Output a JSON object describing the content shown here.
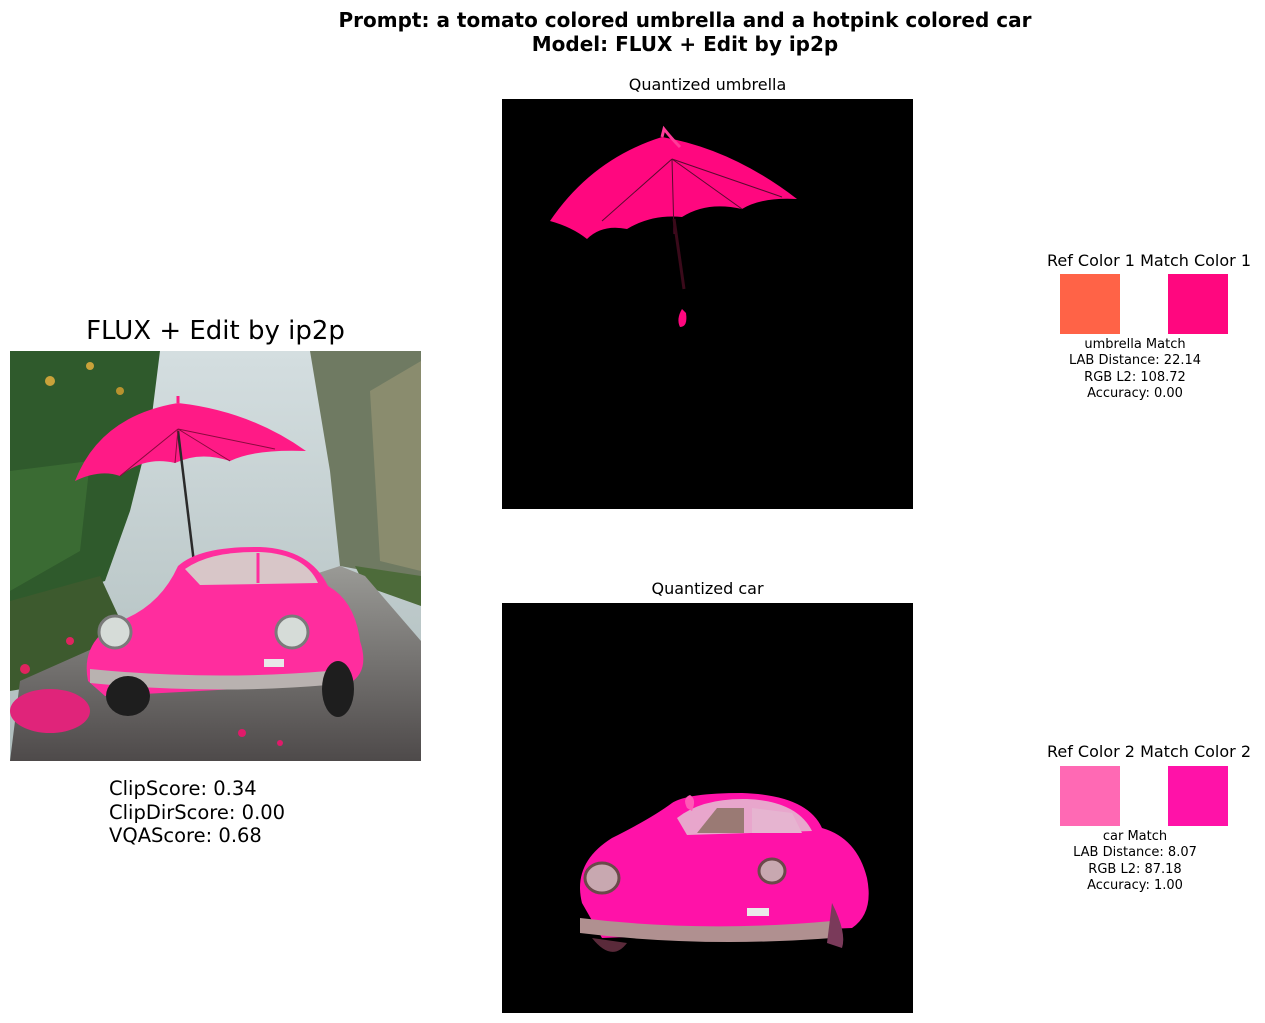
{
  "header": {
    "prompt_line": "Prompt: a tomato colored umbrella and a hotpink colored car",
    "model_line": "Model: FLUX + Edit by ip2p"
  },
  "main": {
    "title": "FLUX + Edit by ip2p",
    "scores": {
      "clip": "ClipScore: 0.34",
      "clipdir": "ClipDirScore: 0.00",
      "vqa": "VQAScore: 0.68"
    }
  },
  "panels": [
    {
      "title": "Quantized umbrella",
      "ref_label": "Ref Color 1",
      "match_label": "Match Color 1",
      "ref_color": "#FF6347",
      "match_color": "#FF077F",
      "info_title": "umbrella Match",
      "lab_distance": "LAB Distance: 22.14",
      "rgb_l2": "RGB L2: 108.72",
      "accuracy": "Accuracy: 0.00"
    },
    {
      "title": "Quantized car",
      "ref_label": "Ref Color 2",
      "match_label": "Match Color 2",
      "ref_color": "#FF69B4",
      "match_color": "#FF12A8",
      "info_title": "car Match",
      "lab_distance": "LAB Distance: 8.07",
      "rgb_l2": "RGB L2: 87.18",
      "accuracy": "Accuracy: 1.00"
    }
  ]
}
